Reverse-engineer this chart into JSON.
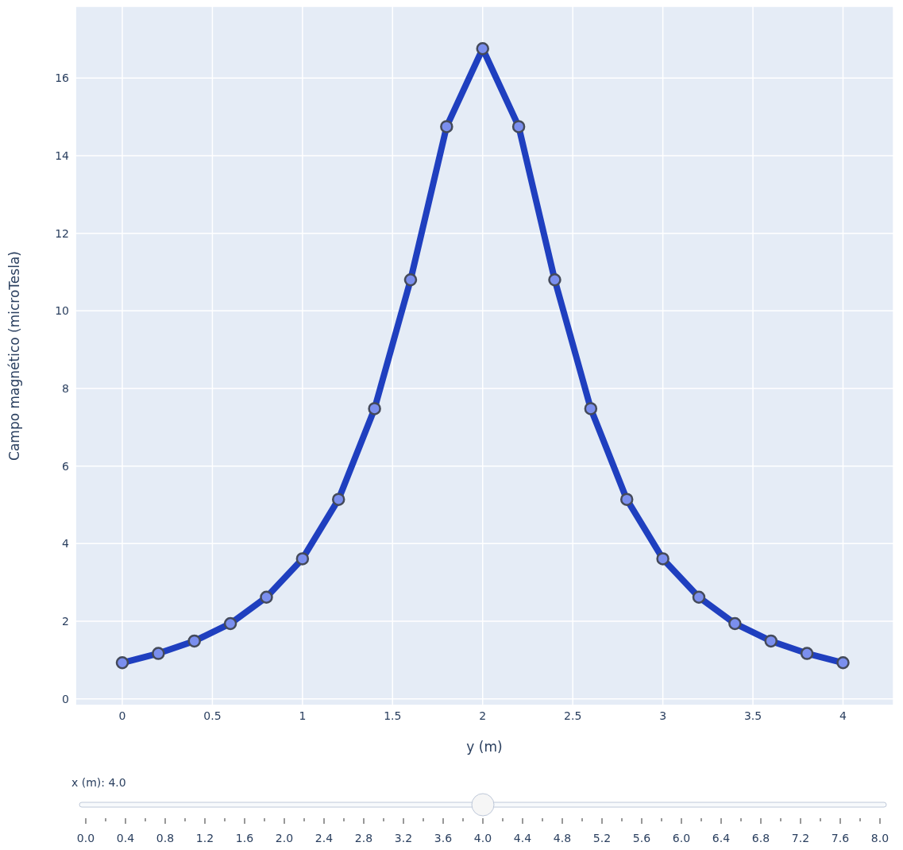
{
  "chart_data": {
    "type": "line",
    "xlabel": "y (m)",
    "ylabel": "Campo magnético (microTesla)",
    "x": [
      0,
      0.2,
      0.4,
      0.6,
      0.8,
      1.0,
      1.2,
      1.4,
      1.6,
      1.8,
      2.0,
      2.2,
      2.4,
      2.6,
      2.8,
      3.0,
      3.2,
      3.4,
      3.6,
      3.8,
      4.0
    ],
    "series": [
      {
        "color": "#1f3fbf",
        "values": [
          0.93,
          1.17,
          1.49,
          1.94,
          2.62,
          3.61,
          5.14,
          7.48,
          10.8,
          14.75,
          16.76,
          14.75,
          10.8,
          7.48,
          5.14,
          3.61,
          2.62,
          1.94,
          1.49,
          1.17,
          0.93
        ]
      }
    ],
    "xlim": [
      -0.26,
      4.28
    ],
    "xticks": [
      0,
      0.5,
      1,
      1.5,
      2,
      2.5,
      3,
      3.5,
      4
    ],
    "ylim": [
      -0.17,
      17.85
    ],
    "yticks": [
      0,
      2,
      4,
      6,
      8,
      10,
      12,
      14,
      16
    ],
    "grid": true,
    "marker": "circle",
    "line_style": "solid",
    "legend": false,
    "annotations": [
      "x (m): 4.0",
      "0.0",
      "0.4",
      "0.8",
      "1.2",
      "1.6",
      "2.0",
      "2.4",
      "2.8",
      "3.2",
      "3.6",
      "4.0",
      "4.4",
      "4.8",
      "5.2",
      "5.6",
      "6.0",
      "6.4",
      "6.8",
      "7.2",
      "7.6",
      "8.0"
    ]
  }
}
